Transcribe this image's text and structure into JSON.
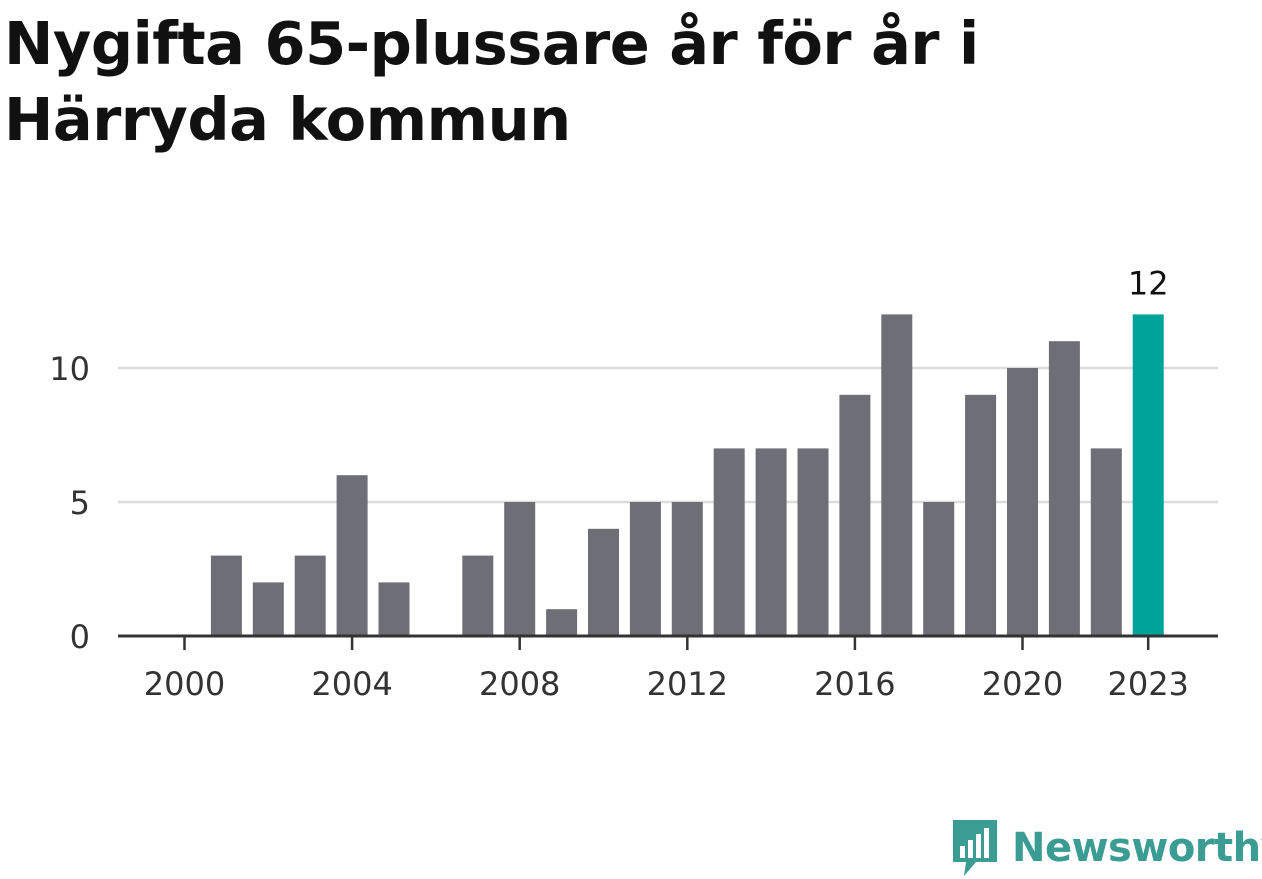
{
  "title": "Nygifta 65-plussare år för år i Härryda kommun",
  "brand": {
    "name": "Newsworthy",
    "color": "#3a9c92",
    "icon": "newsworthy-chart-bubble-icon"
  },
  "colors": {
    "bar": "#6e6e76",
    "highlight": "#00a39a",
    "grid": "#dcdcdc",
    "axis": "#333333"
  },
  "chart_data": {
    "type": "bar",
    "x": [
      2000,
      2001,
      2002,
      2003,
      2004,
      2005,
      2006,
      2007,
      2008,
      2009,
      2010,
      2011,
      2012,
      2013,
      2014,
      2015,
      2016,
      2017,
      2018,
      2019,
      2020,
      2021,
      2022,
      2023
    ],
    "values": [
      0,
      3,
      2,
      3,
      6,
      2,
      0,
      3,
      5,
      1,
      4,
      5,
      5,
      7,
      7,
      7,
      9,
      12,
      5,
      9,
      10,
      11,
      7,
      12
    ],
    "highlight_x": 2023,
    "highlight_label": "12",
    "x_tick_labels": [
      "2000",
      "2004",
      "2008",
      "2012",
      "2016",
      "2020",
      "2023"
    ],
    "y_ticks": [
      0,
      5,
      10
    ],
    "ylim": [
      0,
      13.5
    ],
    "grid": true,
    "xlabel": "",
    "ylabel": ""
  }
}
